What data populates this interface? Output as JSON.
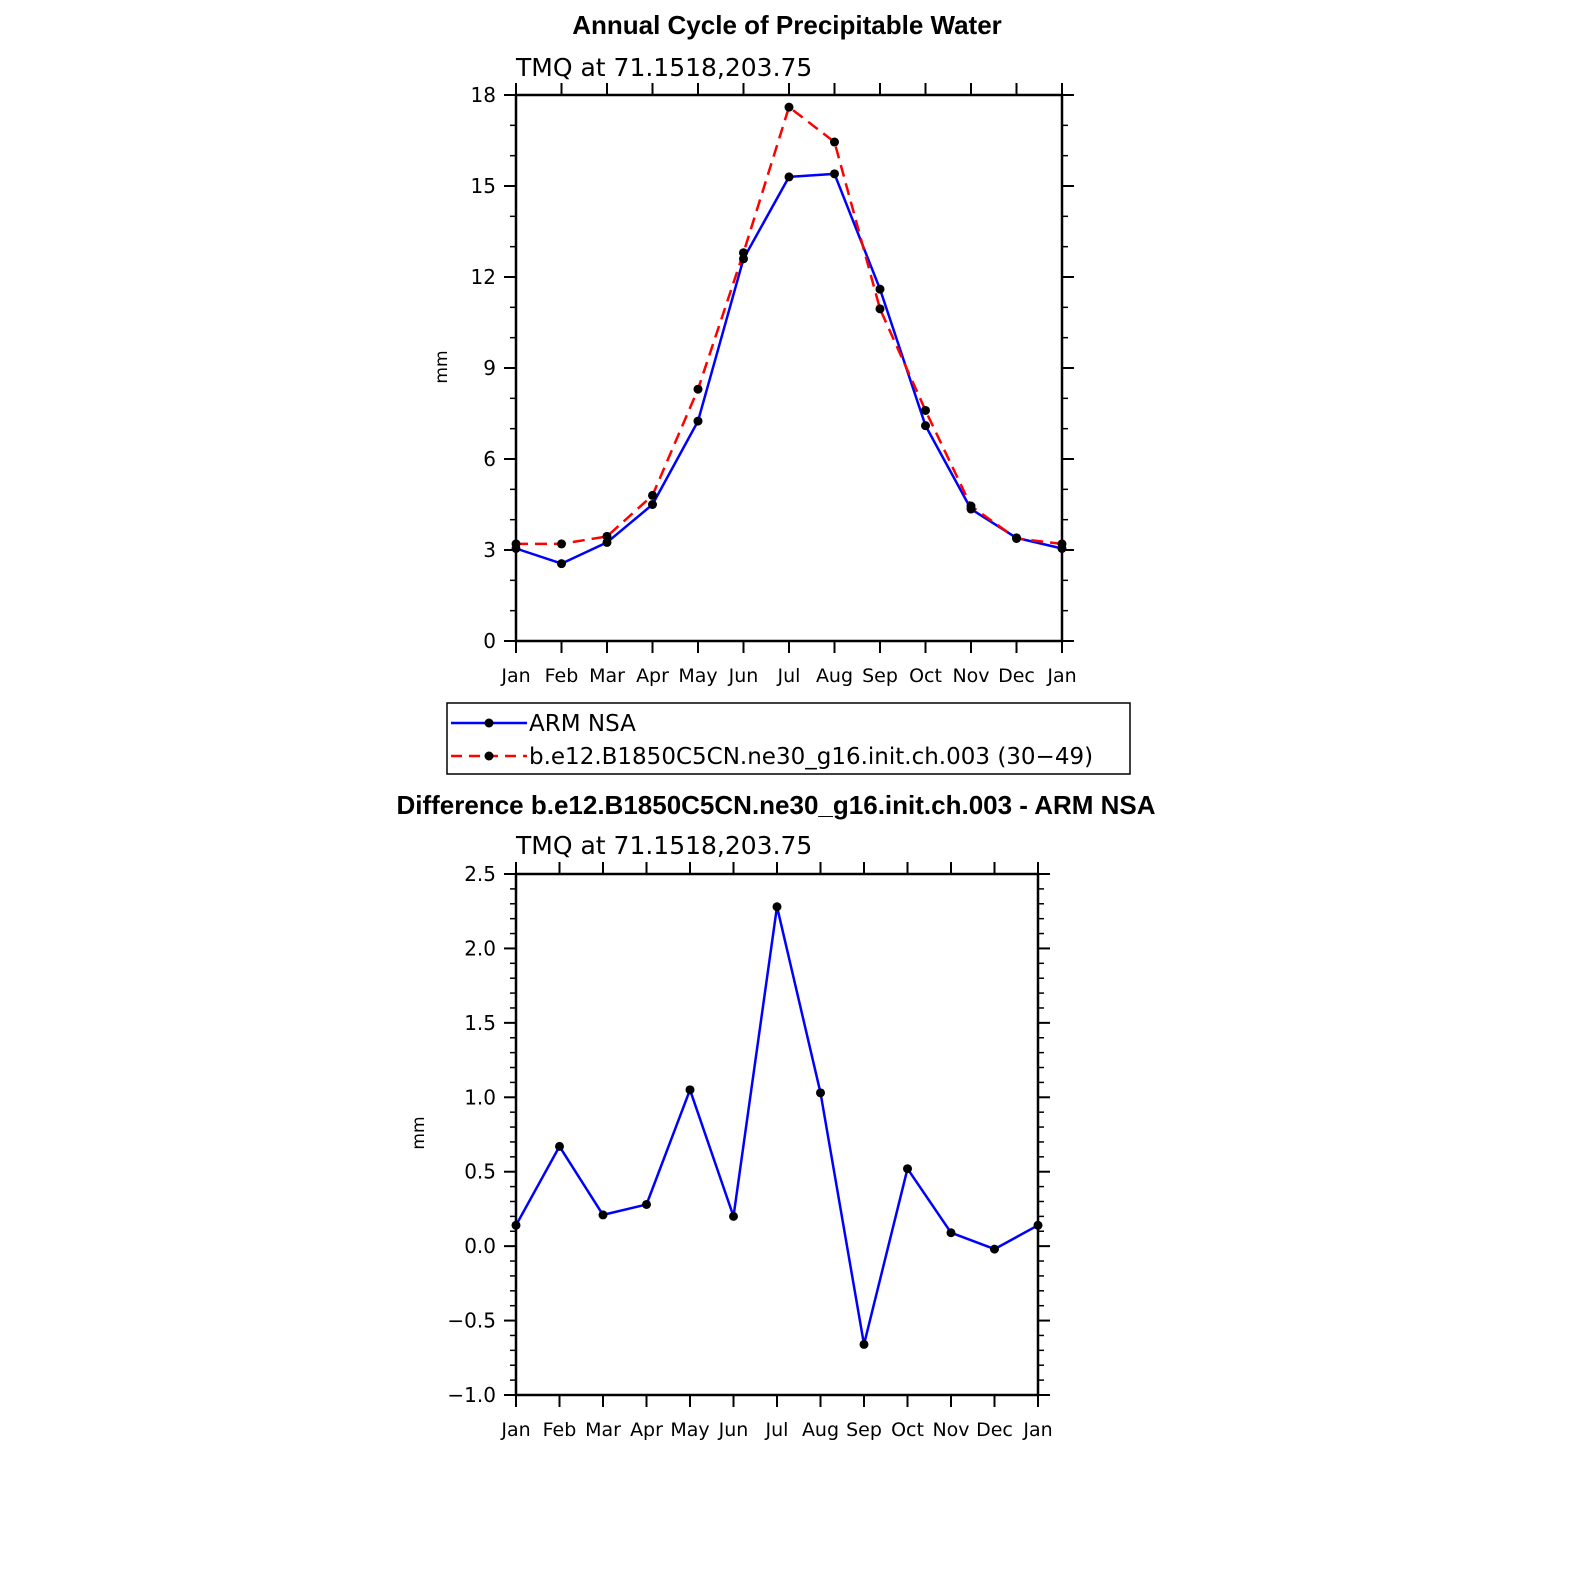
{
  "chart_data": [
    {
      "type": "line",
      "title": "Annual Cycle of Precipitable Water",
      "subtitle": "TMQ  at  71.1518,203.75",
      "ylabel": "mm",
      "xlabel": "",
      "categories": [
        "Jan",
        "Feb",
        "Mar",
        "Apr",
        "May",
        "Jun",
        "Jul",
        "Aug",
        "Sep",
        "Oct",
        "Nov",
        "Dec",
        "Jan"
      ],
      "ylim": [
        0,
        18
      ],
      "yticks": [
        0,
        3,
        6,
        9,
        12,
        15,
        18
      ],
      "ytick_labels": [
        "0",
        "3",
        "6",
        "9",
        "12",
        "15",
        "18"
      ],
      "series": [
        {
          "name": "ARM  NSA",
          "color": "#0000ff",
          "dash": "solid",
          "values": [
            3.05,
            2.55,
            3.25,
            4.5,
            7.25,
            12.6,
            15.3,
            15.4,
            11.6,
            7.1,
            4.35,
            3.4,
            3.05
          ]
        },
        {
          "name": "b.e12.B1850C5CN.ne30_g16.init.ch.003 (30−49)",
          "color": "#ff0000",
          "dash": "dashed",
          "values": [
            3.2,
            3.2,
            3.45,
            4.8,
            8.3,
            12.8,
            17.6,
            16.45,
            10.95,
            7.6,
            4.45,
            3.38,
            3.2
          ]
        }
      ],
      "legend": "bottom"
    },
    {
      "type": "line",
      "title": "Difference b.e12.B1850C5CN.ne30_g16.init.ch.003 - ARM NSA",
      "subtitle": "TMQ  at  71.1518,203.75",
      "ylabel": "mm",
      "xlabel": "",
      "categories": [
        "Jan",
        "Feb",
        "Mar",
        "Apr",
        "May",
        "Jun",
        "Jul",
        "Aug",
        "Sep",
        "Oct",
        "Nov",
        "Dec",
        "Jan"
      ],
      "ylim": [
        -1.0,
        2.5
      ],
      "yticks": [
        -1.0,
        -0.5,
        0.0,
        0.5,
        1.0,
        1.5,
        2.0,
        2.5
      ],
      "ytick_labels": [
        "−1.0",
        "−0.5",
        "0.0",
        "0.5",
        "1.0",
        "1.5",
        "2.0",
        "2.5"
      ],
      "series": [
        {
          "name": "Difference",
          "color": "#0000ff",
          "dash": "solid",
          "values": [
            0.14,
            0.67,
            0.21,
            0.28,
            1.05,
            0.2,
            2.28,
            1.03,
            -0.66,
            0.52,
            0.09,
            -0.02,
            0.14
          ]
        }
      ]
    }
  ]
}
